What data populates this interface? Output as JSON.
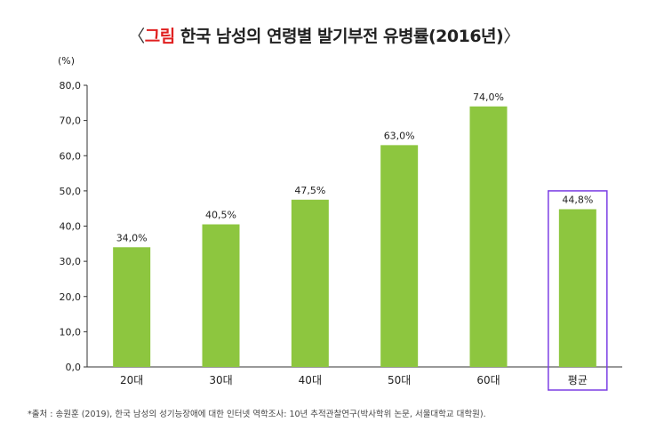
{
  "title": {
    "open": "〈",
    "tag": "그림",
    "text": " 한국 남성의 연령별 발기부전 유병률(2016년)",
    "close": "〉"
  },
  "unit_label": "(%)",
  "source": "*출처 : 송원훈 (2019), 한국 남성의 성기능장애에 대한 인터넷 역학조사: 10년 추적관찰연구(박사학위 논문, 서울대학교 대학원).",
  "colors": {
    "bar": "#8dc63f",
    "highlight": "#7b3fe4",
    "title_tag": "#e02020"
  },
  "chart_data": {
    "type": "bar",
    "title": "〈그림 한국 남성의 연령별 발기부전 유병률(2016년)〉",
    "ylabel": "(%)",
    "categories": [
      "20대",
      "30대",
      "40대",
      "50대",
      "60대",
      "평균"
    ],
    "values": [
      34.0,
      40.5,
      47.5,
      63.0,
      74.0,
      44.8
    ],
    "value_labels": [
      "34,0%",
      "40,5%",
      "47,5%",
      "63,0%",
      "74,0%",
      "44,8%"
    ],
    "ylim": [
      0,
      80
    ],
    "yticks": [
      0,
      10,
      20,
      30,
      40,
      50,
      60,
      70,
      80
    ],
    "ytick_labels": [
      "0,0",
      "10,0",
      "20,0",
      "30,0",
      "40,0",
      "50,0",
      "60,0",
      "70,0",
      "80,0"
    ],
    "highlighted_category": "평균",
    "grid": false,
    "legend": "none"
  }
}
